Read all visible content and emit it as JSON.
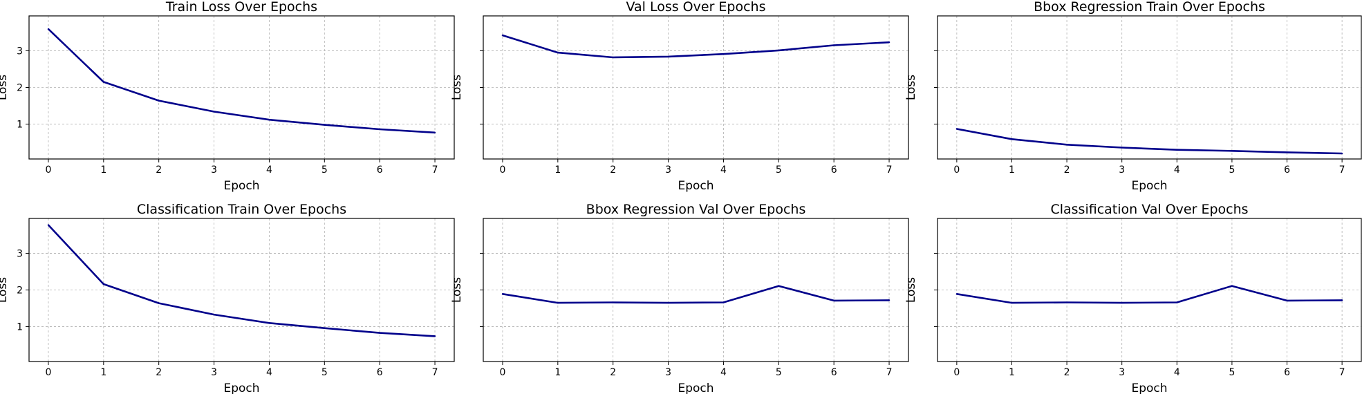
{
  "colors": {
    "line": "#00008b",
    "grid": "#b0b0b0"
  },
  "shared_y": {
    "ticks": [
      1,
      2,
      3
    ],
    "ylim": [
      0.05,
      3.95
    ]
  },
  "chart_data": [
    {
      "type": "line",
      "title": "Train Loss Over Epochs",
      "xlabel": "Epoch",
      "ylabel": "Loss",
      "x": [
        0,
        1,
        2,
        3,
        4,
        5,
        6,
        7
      ],
      "xlim": [
        -0.35,
        7.35
      ],
      "ylim": [
        0.05,
        3.95
      ],
      "grid": true,
      "show_ytick_labels": true,
      "series": [
        {
          "values": [
            3.59,
            2.15,
            1.64,
            1.34,
            1.12,
            0.98,
            0.86,
            0.77
          ]
        }
      ]
    },
    {
      "type": "line",
      "title": "Val Loss Over Epochs",
      "xlabel": "Epoch",
      "ylabel": "Loss",
      "x": [
        0,
        1,
        2,
        3,
        4,
        5,
        6,
        7
      ],
      "xlim": [
        -0.35,
        7.35
      ],
      "ylim": [
        0.05,
        3.95
      ],
      "grid": true,
      "show_ytick_labels": false,
      "series": [
        {
          "values": [
            3.42,
            2.95,
            2.82,
            2.84,
            2.91,
            3.01,
            3.15,
            3.23
          ]
        }
      ]
    },
    {
      "type": "line",
      "title": "Bbox Regression Train Over Epochs",
      "xlabel": "Epoch",
      "ylabel": "Loss",
      "x": [
        0,
        1,
        2,
        3,
        4,
        5,
        6,
        7
      ],
      "xlim": [
        -0.35,
        7.35
      ],
      "ylim": [
        0.05,
        3.95
      ],
      "grid": true,
      "show_ytick_labels": false,
      "series": [
        {
          "values": [
            0.87,
            0.59,
            0.44,
            0.36,
            0.3,
            0.27,
            0.23,
            0.2
          ]
        }
      ]
    },
    {
      "type": "line",
      "title": "Classification Train Over Epochs",
      "xlabel": "Epoch",
      "ylabel": "Loss",
      "x": [
        0,
        1,
        2,
        3,
        4,
        5,
        6,
        7
      ],
      "xlim": [
        -0.35,
        7.35
      ],
      "ylim": [
        0.05,
        3.95
      ],
      "grid": true,
      "show_ytick_labels": true,
      "series": [
        {
          "values": [
            3.77,
            2.16,
            1.64,
            1.33,
            1.1,
            0.96,
            0.83,
            0.74
          ]
        }
      ]
    },
    {
      "type": "line",
      "title": "Bbox Regression Val Over Epochs",
      "xlabel": "Epoch",
      "ylabel": "Loss",
      "x": [
        0,
        1,
        2,
        3,
        4,
        5,
        6,
        7
      ],
      "xlim": [
        -0.35,
        7.35
      ],
      "ylim": [
        0.05,
        3.95
      ],
      "grid": true,
      "show_ytick_labels": false,
      "series": [
        {
          "values": [
            1.89,
            1.65,
            1.66,
            1.65,
            1.66,
            2.11,
            1.71,
            1.72
          ]
        }
      ]
    },
    {
      "type": "line",
      "title": "Classification Val Over Epochs",
      "xlabel": "Epoch",
      "ylabel": "Loss",
      "x": [
        0,
        1,
        2,
        3,
        4,
        5,
        6,
        7
      ],
      "xlim": [
        -0.35,
        7.35
      ],
      "ylim": [
        0.05,
        3.95
      ],
      "grid": true,
      "show_ytick_labels": false,
      "series": [
        {
          "values": [
            1.89,
            1.65,
            1.66,
            1.65,
            1.66,
            2.11,
            1.71,
            1.72
          ]
        }
      ]
    }
  ]
}
